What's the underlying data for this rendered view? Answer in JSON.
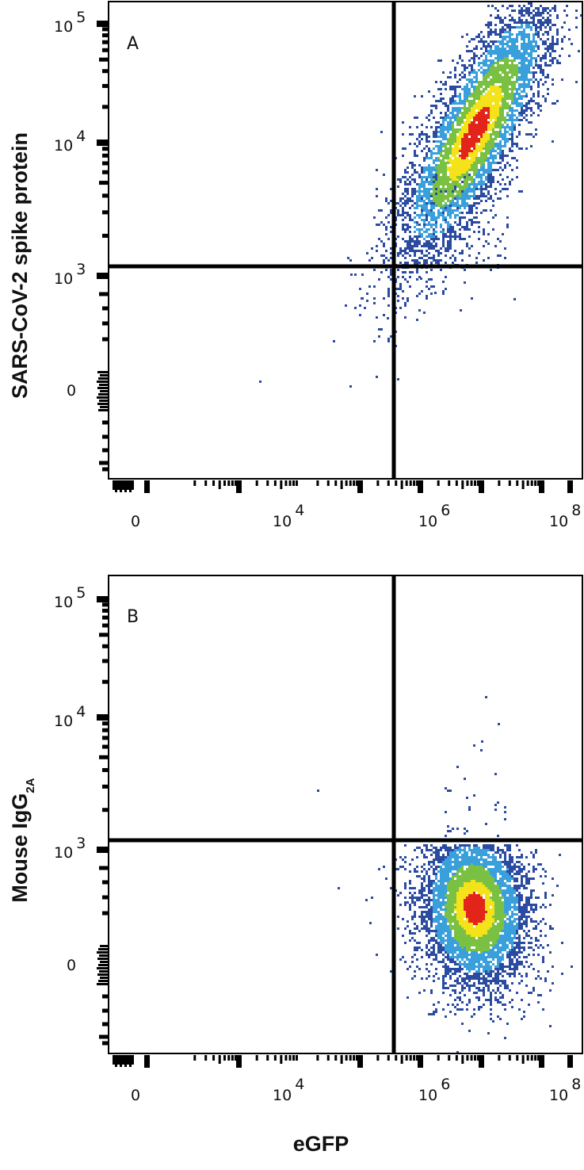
{
  "chart_data": [
    {
      "type": "scatter",
      "subtype": "flow-cytometry-density-plot",
      "panel_label": "A",
      "xlabel": "eGFP",
      "ylabel": "SARS-CoV-2 spike protein",
      "x_scale": "biexponential",
      "y_scale": "biexponential",
      "x_ticks": [
        "0",
        "10^4",
        "10^6",
        "10^8"
      ],
      "y_ticks": [
        "0",
        "10^3",
        "10^4",
        "10^5"
      ],
      "gates": {
        "x_threshold": "~3x10^5",
        "y_threshold": "~1.2x10^3"
      },
      "population": {
        "center": {
          "x": "~4x10^6",
          "y": "~1.3x10^4"
        },
        "shape": "elongated diagonal ellipse, positively correlated",
        "quadrant": "upper-right (eGFP+ / spike+)"
      },
      "colormap": [
        "#2b4ba0",
        "#3aa0dc",
        "#7ac143",
        "#f4e21b",
        "#e3241b"
      ]
    },
    {
      "type": "scatter",
      "subtype": "flow-cytometry-density-plot",
      "panel_label": "B",
      "xlabel": "eGFP",
      "ylabel": "Mouse IgG2A",
      "x_scale": "biexponential",
      "y_scale": "biexponential",
      "x_ticks": [
        "0",
        "10^4",
        "10^6",
        "10^8"
      ],
      "y_ticks": [
        "0",
        "10^3",
        "10^4",
        "10^5"
      ],
      "gates": {
        "x_threshold": "~3x10^5",
        "y_threshold": "~1.2x10^3"
      },
      "population": {
        "center": {
          "x": "~4x10^6",
          "y": "~400"
        },
        "shape": "vertical ellipse",
        "quadrant": "lower-right (eGFP+ / isotype-)"
      },
      "colormap": [
        "#2b4ba0",
        "#3aa0dc",
        "#7ac143",
        "#f4e21b",
        "#e3241b"
      ]
    }
  ],
  "panels": [
    {
      "label": "A",
      "ylabel_main": "SARS-CoV-2 spike protein",
      "ylabel_sub": "",
      "yticks": [
        {
          "base": "10",
          "exp": "5"
        },
        {
          "base": "10",
          "exp": "4"
        },
        {
          "base": "10",
          "exp": "3"
        },
        {
          "base": "0",
          "exp": ""
        }
      ]
    },
    {
      "label": "B",
      "ylabel_main": "Mouse IgG",
      "ylabel_sub": "2A",
      "yticks": [
        {
          "base": "10",
          "exp": "5"
        },
        {
          "base": "10",
          "exp": "4"
        },
        {
          "base": "10",
          "exp": "3"
        },
        {
          "base": "0",
          "exp": ""
        }
      ]
    }
  ],
  "xticks": [
    {
      "base": "0",
      "exp": ""
    },
    {
      "base": "10",
      "exp": "4"
    },
    {
      "base": "10",
      "exp": "6"
    },
    {
      "base": "10",
      "exp": "8"
    }
  ],
  "xlabel": "eGFP",
  "colors": {
    "axis": "#000000",
    "density_low": "#2b4ba0",
    "density_midlow": "#3aa0dc",
    "density_mid": "#7ac143",
    "density_midhigh": "#f4e21b",
    "density_high": "#e3241b"
  }
}
